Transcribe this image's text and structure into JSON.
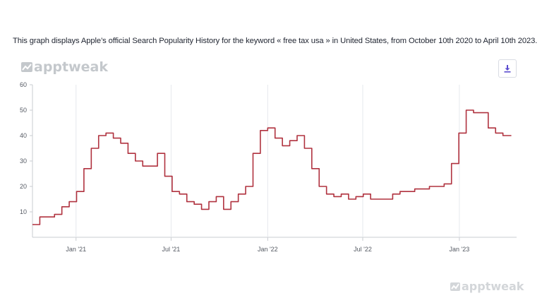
{
  "caption": "This graph displays Apple’s official Search Popularity History for the keyword « free tax usa » in United States, from October 10th 2020 to April 10th 2023.",
  "branding": {
    "logo_text": "apptweak",
    "watermark_text": "apptweak"
  },
  "icons": {
    "download": "download-icon",
    "logo": "apptweak-logo-icon"
  },
  "colors": {
    "line": "#b0323f",
    "download_icon": "#5b4ccf",
    "grid": "#e6e8ec",
    "axis": "#c9ccd1"
  },
  "chart_data": {
    "type": "line",
    "title": "",
    "xlabel": "",
    "ylabel": "",
    "x_ticks": [
      "Jan '21",
      "Jul '21",
      "Jan '22",
      "Jul '22",
      "Jan '23"
    ],
    "y_ticks": [
      10,
      20,
      30,
      40,
      50,
      60
    ],
    "ylim": [
      0,
      60
    ],
    "grid": "vertical",
    "series": [
      {
        "name": "",
        "x": [
          "2020-10-10",
          "2020-10-24",
          "2020-11-07",
          "2020-11-21",
          "2020-12-05",
          "2020-12-19",
          "2021-01-02",
          "2021-01-16",
          "2021-01-30",
          "2021-02-13",
          "2021-02-27",
          "2021-03-13",
          "2021-03-27",
          "2021-04-10",
          "2021-04-24",
          "2021-05-08",
          "2021-05-22",
          "2021-06-05",
          "2021-06-19",
          "2021-07-03",
          "2021-07-17",
          "2021-07-31",
          "2021-08-14",
          "2021-08-28",
          "2021-09-11",
          "2021-09-25",
          "2021-10-09",
          "2021-10-23",
          "2021-11-06",
          "2021-11-20",
          "2021-12-04",
          "2021-12-18",
          "2022-01-01",
          "2022-01-15",
          "2022-01-29",
          "2022-02-12",
          "2022-02-26",
          "2022-03-12",
          "2022-03-26",
          "2022-04-09",
          "2022-04-23",
          "2022-05-07",
          "2022-05-21",
          "2022-06-04",
          "2022-06-18",
          "2022-07-02",
          "2022-07-16",
          "2022-07-30",
          "2022-08-13",
          "2022-08-27",
          "2022-09-10",
          "2022-09-24",
          "2022-10-08",
          "2022-10-22",
          "2022-11-05",
          "2022-11-19",
          "2022-12-03",
          "2022-12-17",
          "2022-12-31",
          "2023-01-14",
          "2023-01-28",
          "2023-02-11",
          "2023-02-25",
          "2023-03-11",
          "2023-03-25",
          "2023-04-10"
        ],
        "values": [
          5,
          8,
          8,
          9,
          12,
          14,
          18,
          27,
          35,
          40,
          41,
          39,
          37,
          33,
          30,
          28,
          28,
          33,
          24,
          18,
          17,
          14,
          13,
          11,
          14,
          16,
          11,
          14,
          17,
          20,
          33,
          42,
          43,
          39,
          36,
          38,
          40,
          35,
          27,
          20,
          17,
          16,
          17,
          15,
          16,
          17,
          15,
          15,
          15,
          17,
          18,
          18,
          19,
          19,
          20,
          20,
          21,
          29,
          41,
          50,
          49,
          49,
          43,
          41,
          40,
          40
        ]
      }
    ]
  }
}
